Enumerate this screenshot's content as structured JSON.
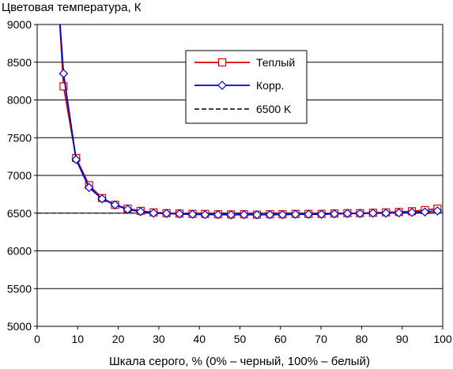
{
  "chart_data": {
    "type": "line",
    "title": "Цветовая температура, К",
    "xlabel": "Шкала серого, % (0% – черный, 100% – белый)",
    "ylabel": "",
    "xlim": [
      0,
      100
    ],
    "ylim": [
      5000,
      9000
    ],
    "x_ticks": [
      0,
      10,
      20,
      30,
      40,
      50,
      60,
      70,
      80,
      90,
      100
    ],
    "y_ticks": [
      5000,
      5500,
      6000,
      6500,
      7000,
      7500,
      8000,
      8500,
      9000
    ],
    "grid": "horizontal",
    "legend_position": "top-right",
    "reference_line": {
      "name": "6500 K",
      "value": 6500,
      "style": "dashed",
      "color": "#000000"
    },
    "x": [
      5.5,
      6.5,
      9.6,
      12.8,
      16.0,
      19.2,
      22.3,
      25.5,
      28.7,
      31.9,
      35.1,
      38.3,
      41.4,
      44.6,
      47.8,
      51.0,
      54.2,
      57.4,
      60.5,
      63.7,
      66.9,
      70.1,
      73.3,
      76.5,
      79.6,
      82.8,
      86.0,
      89.2,
      92.4,
      95.6,
      98.7
    ],
    "series": [
      {
        "name": "Теплый",
        "color": "#e00000",
        "marker": "square",
        "values": [
          9100,
          8180,
          7230,
          6870,
          6700,
          6610,
          6560,
          6530,
          6510,
          6500,
          6495,
          6490,
          6490,
          6485,
          6483,
          6485,
          6480,
          6485,
          6485,
          6490,
          6490,
          6490,
          6495,
          6500,
          6500,
          6505,
          6510,
          6515,
          6525,
          6540,
          6560
        ]
      },
      {
        "name": "Корр.",
        "color": "#0000cc",
        "marker": "diamond",
        "values": [
          9100,
          8350,
          7210,
          6840,
          6690,
          6610,
          6550,
          6520,
          6500,
          6495,
          6490,
          6485,
          6480,
          6480,
          6478,
          6480,
          6478,
          6480,
          6480,
          6485,
          6485,
          6485,
          6490,
          6495,
          6495,
          6500,
          6500,
          6505,
          6510,
          6515,
          6530
        ]
      }
    ]
  }
}
